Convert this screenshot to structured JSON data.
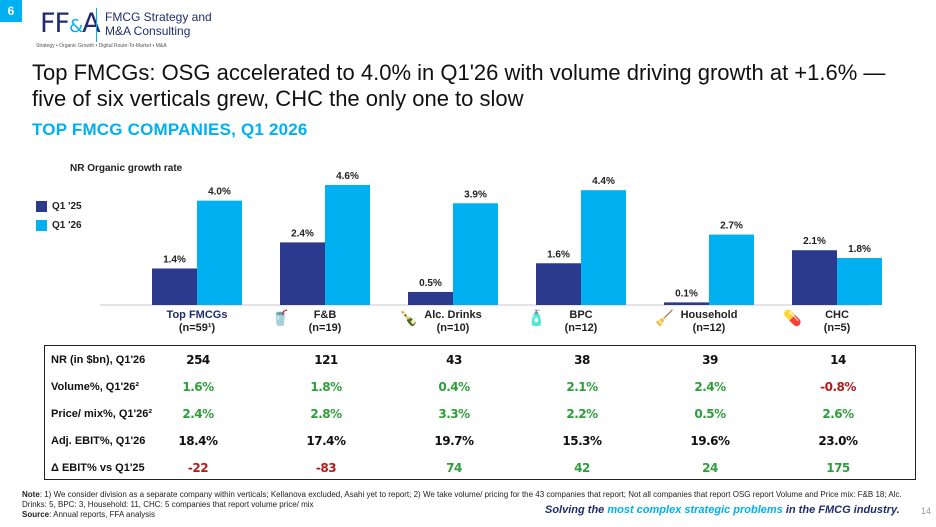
{
  "page_badge": "6",
  "logo": {
    "mark_left": "FF",
    "mark_amp": "&",
    "mark_right": "A",
    "company_line1": "FMCG Strategy and",
    "company_line2": "M&A Consulting",
    "tagline": "Strategy • Organic Growth • Digital Route-To-Market • M&A"
  },
  "headline": "Top FMCGs: OSG accelerated to 4.0% in Q1'26 with volume driving growth at +1.6% — five of six verticals grew, CHC the only one to slow",
  "subheadline": "TOP FMCG COMPANIES, Q1 2026",
  "chart_data": {
    "type": "bar",
    "title": "NR Organic growth rate",
    "unit": "%",
    "categories": [
      "Top FMCGs",
      "F&B",
      "Alc. Drinks",
      "BPC",
      "Household",
      "CHC"
    ],
    "category_counts": [
      "(n=59¹)",
      "(n=19)",
      "(n=10)",
      "(n=12)",
      "(n=12)",
      "(n=5)"
    ],
    "series": [
      {
        "name": "Q1 '25",
        "color": "#2b3a8c",
        "values": [
          1.4,
          2.4,
          0.5,
          1.6,
          0.1,
          2.1
        ],
        "labels": [
          "1.4%",
          "2.4%",
          "0.5%",
          "1.6%",
          "0.1%",
          "2.1%"
        ]
      },
      {
        "name": "Q1 '26",
        "color": "#00b0f0",
        "values": [
          4.0,
          4.6,
          3.9,
          4.4,
          2.7,
          1.8
        ],
        "labels": [
          "4.0%",
          "4.6%",
          "3.9%",
          "4.4%",
          "2.7%",
          "1.8%"
        ]
      }
    ],
    "ylim": [
      0,
      4.6
    ],
    "legend": "left"
  },
  "category_icons": [
    "",
    "🥤",
    "🍾",
    "🧴",
    "🧹",
    "💊"
  ],
  "table": {
    "rows": [
      {
        "label": "NR (in $bn), Q1'26",
        "values": [
          "254",
          "121",
          "43",
          "38",
          "39",
          "14"
        ],
        "tones": [
          "neutral",
          "neutral",
          "neutral",
          "neutral",
          "neutral",
          "neutral"
        ]
      },
      {
        "label": "Volume%, Q1'26²",
        "values": [
          "1.6%",
          "1.8%",
          "0.4%",
          "2.1%",
          "2.4%",
          "-0.8%"
        ],
        "tones": [
          "pos",
          "pos",
          "pos",
          "pos",
          "pos",
          "neg"
        ]
      },
      {
        "label": "Price/ mix%, Q1'26²",
        "values": [
          "2.4%",
          "2.8%",
          "3.3%",
          "2.2%",
          "0.5%",
          "2.6%"
        ],
        "tones": [
          "pos",
          "pos",
          "pos",
          "pos",
          "pos",
          "pos"
        ]
      },
      {
        "label": "Adj. EBIT%, Q1'26",
        "values": [
          "18.4%",
          "17.4%",
          "19.7%",
          "15.3%",
          "19.6%",
          "23.0%"
        ],
        "tones": [
          "neutral",
          "neutral",
          "neutral",
          "neutral",
          "neutral",
          "neutral"
        ]
      },
      {
        "label": "Δ EBIT% vs Q1'25",
        "values": [
          "-22",
          "-83",
          "74",
          "42",
          "24",
          "175"
        ],
        "tones": [
          "neg",
          "neg",
          "pos",
          "pos",
          "pos",
          "pos"
        ]
      }
    ]
  },
  "notes": {
    "note_label": "Note",
    "note_text": ": 1) We consider division as a separate company within verticals; Kellanova excluded, Asahi yet to report; 2) We take volume/ pricing for the 43 companies that report; Not all companies that report OSG report Volume and Price mix: F&B 18; Alc. Drinks: 5, BPC: 3, Household: 11, CHC: 5 companies that report volume price/ mix",
    "source_label": "Source",
    "source_text": ": Annual reports, FFA analysis"
  },
  "footer": {
    "tag_prefix": "Solving the ",
    "tag_highlight": "most complex strategic problems",
    "tag_suffix": " in the FMCG industry.",
    "page_number": "14"
  },
  "colors": {
    "accent": "#00b0f0",
    "navy": "#1f2d6e",
    "positive": "#2e9e3a",
    "negative": "#b31b1b"
  }
}
